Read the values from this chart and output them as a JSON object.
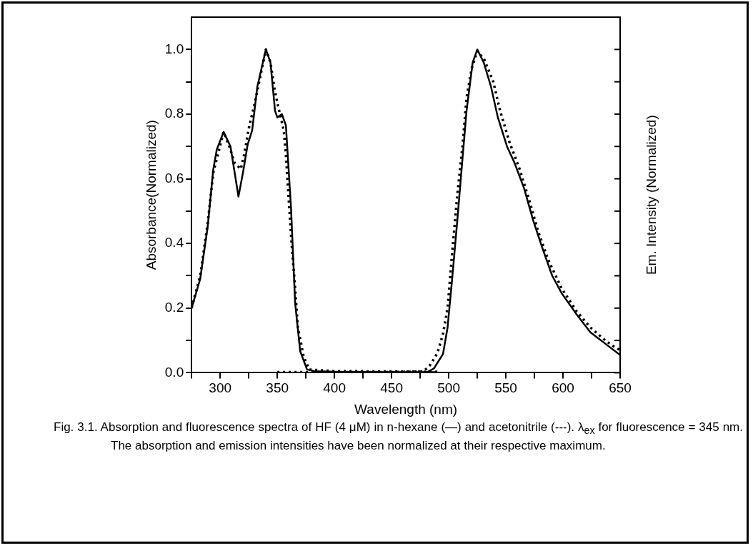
{
  "chart_data": {
    "type": "line",
    "xlabel": "Wavelength (nm)",
    "ylabel": "Absorbance(Normalized)",
    "y2label": "Em. Intensity (Normalized)",
    "annotations": [
      "Fig. 3.1. Absorption and fluorescence spectra of HF (4 μM) in n-hexane (—) and acetonitrile (---). λ$_{ex}$ for fluorescence = 345 nm. The absorption and emission intensities have been normalized at their respective maximum."
    ],
    "xlim": [
      275,
      650
    ],
    "xticks": [
      {
        "value": 275,
        "label": null
      },
      300,
      {
        "value": 325,
        "label": null
      },
      350,
      {
        "value": 375,
        "label": null
      },
      400,
      {
        "value": 425,
        "label": null
      },
      450,
      {
        "value": 475,
        "label": null
      },
      500,
      {
        "value": 525,
        "label": null
      },
      550,
      {
        "value": 575,
        "label": null
      },
      600,
      {
        "value": 625,
        "label": null
      },
      650
    ],
    "ylim": [
      0,
      1.1
    ],
    "yticks": [
      {
        "value": 0,
        "label": "0.0"
      },
      {
        "value": 0.1,
        "label": null
      },
      0.2,
      {
        "value": 0.3,
        "label": null
      },
      0.4,
      {
        "value": 0.5,
        "label": null
      },
      0.6,
      {
        "value": 0.7,
        "label": null
      },
      0.8,
      {
        "value": 0.9,
        "label": null
      },
      {
        "value": 1,
        "label": "1.0"
      }
    ],
    "grid": false,
    "legend": false,
    "marker": "none",
    "series": [
      {
        "color": "#000000",
        "line_style": "solid",
        "x": [
          275,
          282.5,
          289,
          294,
          297,
          303,
          309,
          316,
          320,
          324,
          328,
          332.5,
          340,
          344,
          348,
          350,
          354,
          357.5,
          362,
          365.6,
          370,
          376,
          382.5,
          400,
          450,
          490
        ],
        "values": [
          0.2,
          0.29,
          0.45,
          0.63,
          0.69,
          0.745,
          0.7,
          0.545,
          0.62,
          0.705,
          0.75,
          0.885,
          1.0,
          0.96,
          0.81,
          0.79,
          0.8,
          0.765,
          0.51,
          0.215,
          0.067,
          0.01,
          0.005,
          0.003,
          0.002,
          0.002
        ]
      },
      {
        "color": "#000000",
        "line_style": "dotted",
        "x": [
          275,
          282.5,
          289,
          294,
          303,
          309,
          312.5,
          318,
          321,
          325,
          330.6,
          340,
          344,
          347.5,
          350,
          353,
          355.6,
          357.5,
          359,
          362.5,
          365,
          368,
          370.6,
          373,
          378,
          400,
          450,
          490
        ],
        "values": [
          0.2,
          0.3,
          0.46,
          0.62,
          0.745,
          0.69,
          0.65,
          0.63,
          0.675,
          0.755,
          0.84,
          1.0,
          0.96,
          0.88,
          0.835,
          0.79,
          0.75,
          0.675,
          0.59,
          0.4,
          0.29,
          0.14,
          0.095,
          0.05,
          0.01,
          0.005,
          0.004,
          0.003
        ]
      },
      {
        "color": "#000000",
        "line_style": "solid",
        "x": [
          350,
          400,
          450,
          480,
          487,
          495,
          499,
          503,
          507.5,
          512,
          515.6,
          521,
          525,
          530.6,
          537,
          543,
          551,
          557.5,
          566,
          574,
          582.5,
          590.6,
          599,
          612,
          624,
          637,
          650
        ],
        "values": [
          0,
          0,
          0,
          0,
          0.013,
          0.058,
          0.14,
          0.29,
          0.47,
          0.66,
          0.81,
          0.96,
          1.0,
          0.96,
          0.885,
          0.79,
          0.7,
          0.65,
          0.57,
          0.47,
          0.38,
          0.3,
          0.245,
          0.18,
          0.125,
          0.09,
          0.055
        ]
      },
      {
        "color": "#000000",
        "line_style": "dotted",
        "x": [
          350,
          400,
          450,
          478,
          484,
          490,
          495,
          499,
          503,
          507.5,
          512,
          515.6,
          520,
          525,
          531,
          539,
          545,
          553,
          562,
          570,
          578,
          587,
          599,
          612,
          624,
          637,
          645,
          650
        ],
        "values": [
          0.002,
          0.002,
          0.002,
          0.004,
          0.025,
          0.06,
          0.12,
          0.2,
          0.37,
          0.55,
          0.7,
          0.85,
          0.94,
          0.995,
          0.97,
          0.9,
          0.81,
          0.715,
          0.63,
          0.54,
          0.44,
          0.35,
          0.26,
          0.19,
          0.14,
          0.1,
          0.08,
          0.07
        ]
      }
    ]
  }
}
